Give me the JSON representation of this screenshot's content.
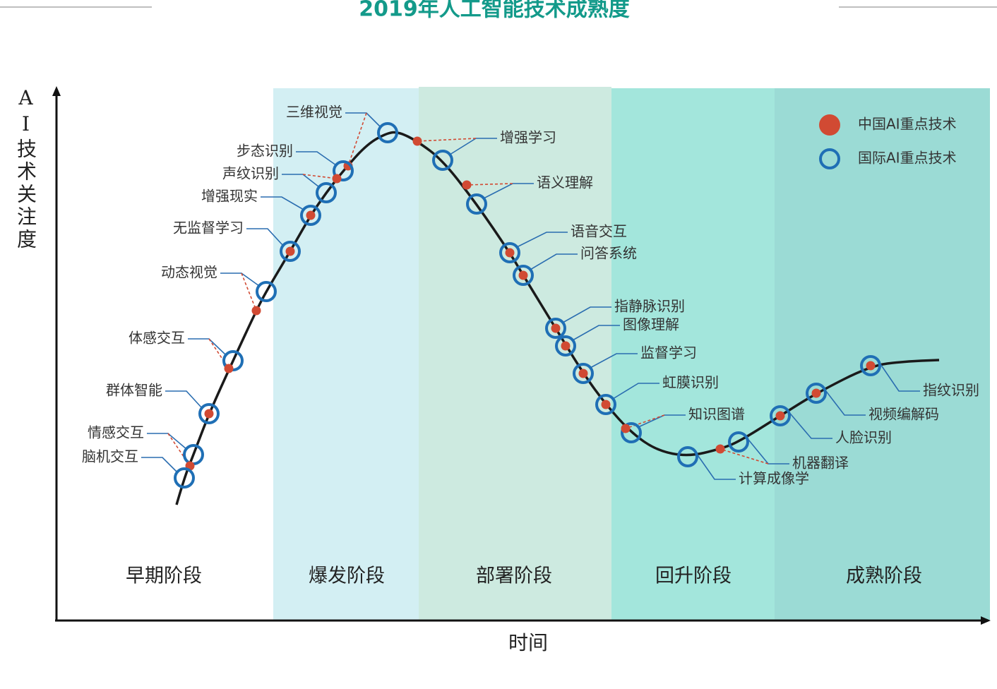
{
  "title": "2019年人工智能技术成熟度",
  "y_axis_label": "AI技术关注度",
  "x_axis_label": "时间",
  "phases": [
    "早期阶段",
    "爆发阶段",
    "部署阶段",
    "回升阶段",
    "成熟阶段"
  ],
  "legend": [
    "中国AI重点技术",
    "国际AI重点技术"
  ],
  "technologies": [
    "三维视觉",
    "步态识别",
    "声纹识别",
    "增强现实",
    "无监督学习",
    "动态视觉",
    "体感交互",
    "群体智能",
    "情感交互",
    "脑机交互",
    "增强学习",
    "语义理解",
    "语音交互",
    "问答系统",
    "指静脉识别",
    "图像理解",
    "监督学习",
    "虹膜识别",
    "知识图谱",
    "计算成像学",
    "机器翻译",
    "人脸识别",
    "视频编解码",
    "指纹识别"
  ]
}
